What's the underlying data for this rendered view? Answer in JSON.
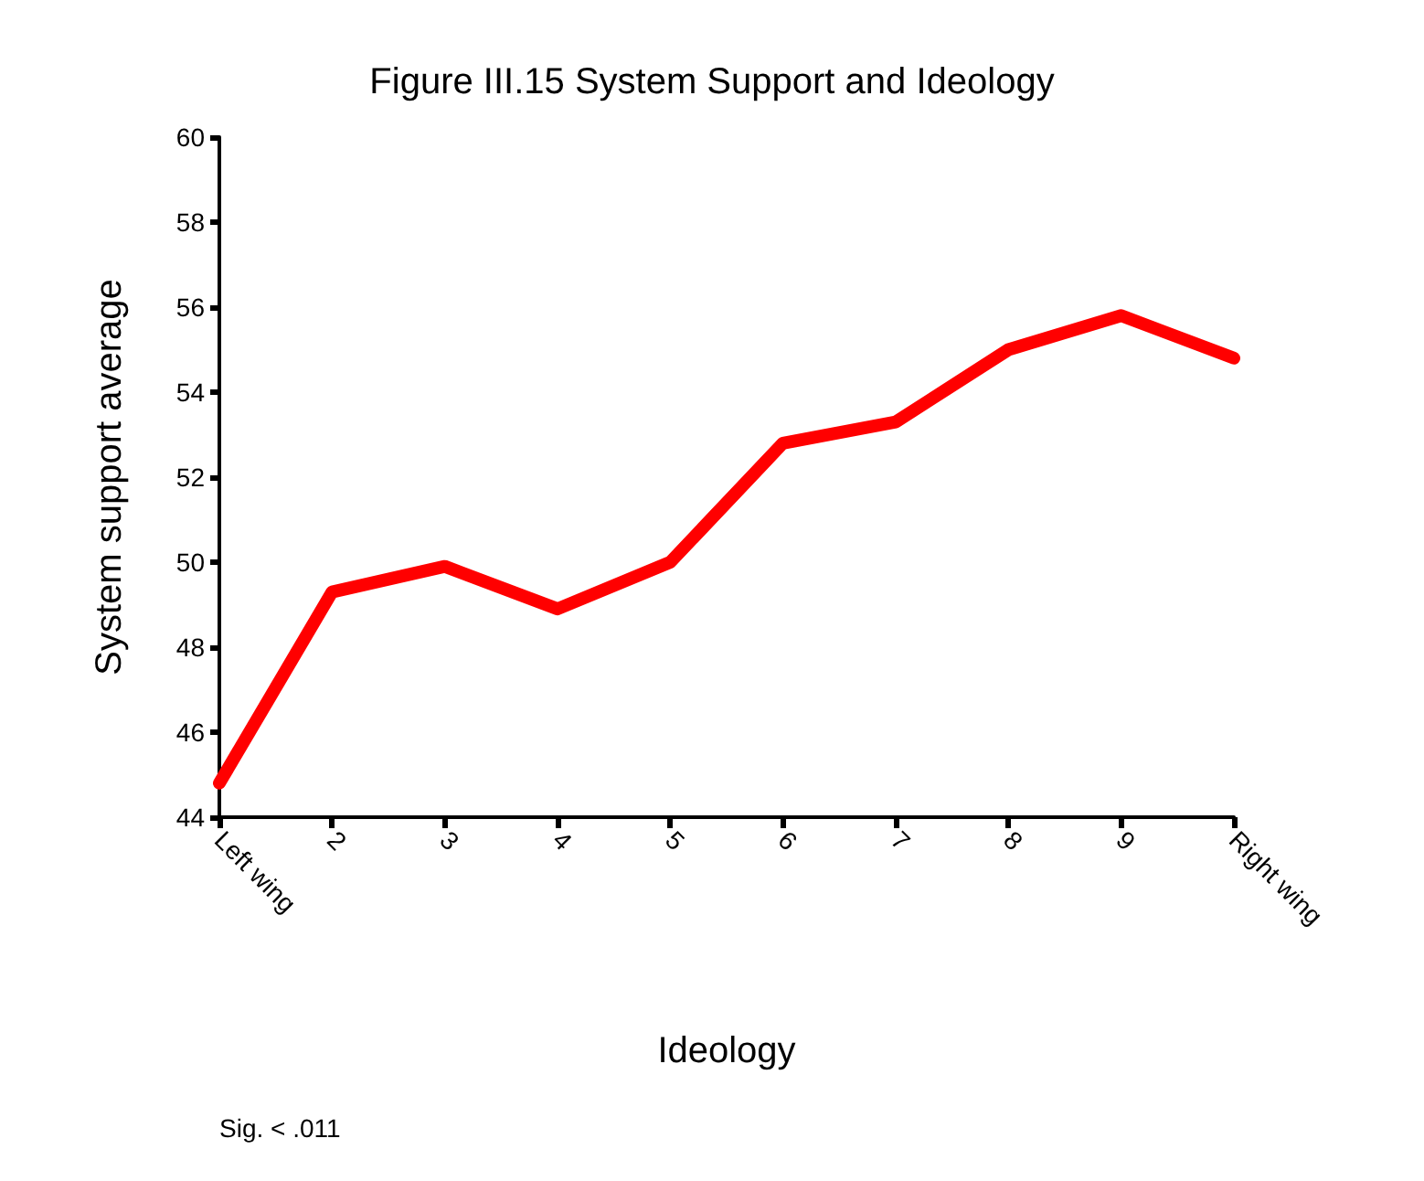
{
  "chart_data": {
    "type": "line",
    "title": "Figure III.15 System Support and Ideology",
    "xlabel": "Ideology",
    "ylabel": "System support average",
    "annotations": [
      "Sig. < .011"
    ],
    "categories": [
      "Left wing",
      "2",
      "3",
      "4",
      "5",
      "6",
      "7",
      "8",
      "9",
      "Right wing"
    ],
    "series": [
      {
        "color": "#ff0000",
        "values": [
          44.8,
          49.3,
          49.9,
          48.9,
          50.0,
          52.8,
          53.3,
          55.0,
          55.8,
          54.8
        ]
      }
    ],
    "ylim": [
      44,
      60
    ],
    "yticks": [
      44,
      46,
      48,
      50,
      52,
      54,
      56,
      58,
      60
    ],
    "grid": false,
    "marker": "none",
    "line_style": "solid"
  }
}
